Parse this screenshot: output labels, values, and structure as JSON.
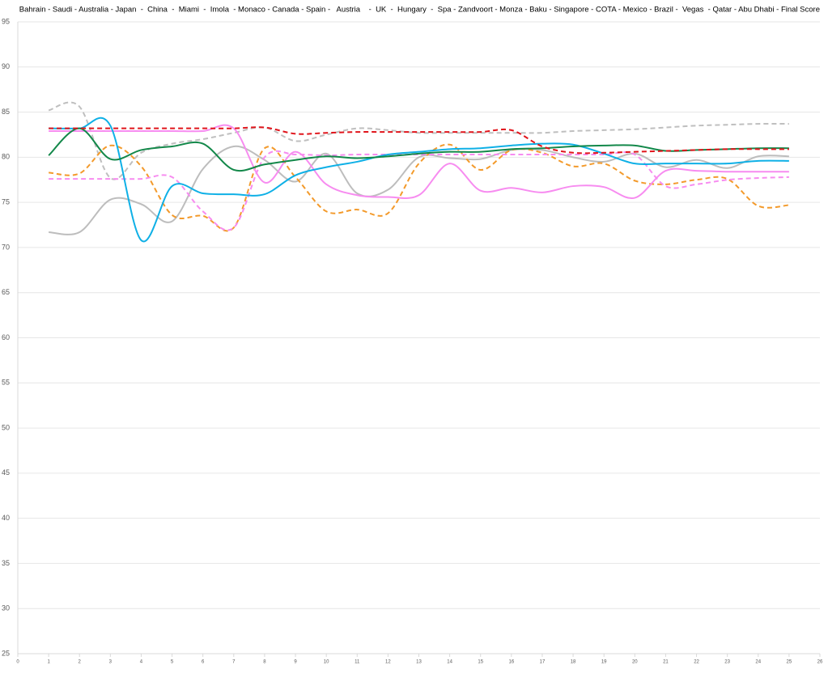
{
  "chart_data": {
    "type": "line",
    "title": "Bahrain - Saudi - Australia - Japan  -  China  -  Miami  -  Imola  - Monaco - Canada - Spain -   Austria    -  UK  -  Hungary  -  Spa - Zandvoort - Monza - Baku - Singapore - COTA - Mexico - Brazil -  Vegas  - Qatar - Abu Dhabi - Final Score",
    "x": [
      1,
      2,
      3,
      4,
      5,
      6,
      7,
      8,
      9,
      10,
      11,
      12,
      13,
      14,
      15,
      16,
      17,
      18,
      19,
      20,
      21,
      22,
      23,
      24,
      25
    ],
    "xlim": [
      0,
      26
    ],
    "xticks": [
      0,
      1,
      2,
      3,
      4,
      5,
      6,
      7,
      8,
      9,
      10,
      11,
      12,
      13,
      14,
      15,
      16,
      17,
      18,
      19,
      20,
      21,
      22,
      23,
      24,
      25,
      26
    ],
    "ylim": [
      25,
      95
    ],
    "yticks": [
      25,
      30,
      35,
      40,
      45,
      50,
      55,
      60,
      65,
      70,
      75,
      80,
      85,
      90,
      95
    ],
    "grid": true,
    "smooth": true,
    "series": [
      {
        "color": "#bdbdbd",
        "dashed": false,
        "values": [
          71.7,
          71.7,
          75.3,
          74.8,
          72.9,
          78.7,
          81.2,
          79.7,
          77.3,
          80.4,
          76.0,
          76.4,
          80.0,
          79.9,
          79.8,
          80.8,
          80.8,
          80.0,
          79.5,
          80.4,
          78.9,
          79.7,
          78.8,
          80.1,
          80.1
        ]
      },
      {
        "color": "#bfbfbf",
        "dashed": true,
        "values": [
          85.2,
          85.6,
          77.7,
          80.5,
          81.5,
          82.0,
          82.7,
          83.3,
          81.8,
          82.5,
          83.2,
          83.0,
          82.7,
          82.7,
          82.7,
          82.7,
          82.7,
          82.9,
          83.0,
          83.1,
          83.3,
          83.5,
          83.6,
          83.7,
          83.7
        ]
      },
      {
        "color": "#f39a2b",
        "dashed": true,
        "values": [
          78.3,
          78.2,
          81.3,
          79.0,
          73.6,
          73.5,
          72.2,
          81.0,
          77.8,
          74.0,
          74.2,
          73.8,
          79.3,
          81.4,
          78.6,
          80.8,
          80.5,
          79.0,
          79.3,
          77.4,
          77.0,
          77.5,
          77.6,
          74.6,
          74.7
        ]
      },
      {
        "color": "#f78cf0",
        "dashed": true,
        "values": [
          77.6,
          77.6,
          77.6,
          77.6,
          77.8,
          74.0,
          72.2,
          80.0,
          80.3,
          80.2,
          80.3,
          80.3,
          80.3,
          80.3,
          80.3,
          80.3,
          80.3,
          80.3,
          80.3,
          80.3,
          76.8,
          77.0,
          77.5,
          77.7,
          77.8
        ]
      },
      {
        "color": "#f78cf0",
        "dashed": false,
        "values": [
          82.9,
          82.9,
          82.9,
          82.9,
          82.9,
          82.9,
          83.2,
          77.2,
          80.6,
          77.0,
          75.8,
          75.6,
          75.8,
          79.3,
          76.3,
          76.6,
          76.1,
          76.8,
          76.7,
          75.5,
          78.5,
          78.5,
          78.4,
          78.4,
          78.4
        ]
      },
      {
        "color": "#0fb0e6",
        "dashed": false,
        "values": [
          83.2,
          83.2,
          83.5,
          70.8,
          76.8,
          76.0,
          75.9,
          75.9,
          78.0,
          78.9,
          79.5,
          80.3,
          80.6,
          80.9,
          81.0,
          81.3,
          81.5,
          81.4,
          80.4,
          79.3,
          79.3,
          79.3,
          79.3,
          79.6,
          79.6
        ]
      },
      {
        "color": "#13884a",
        "dashed": false,
        "values": [
          80.2,
          83.2,
          79.8,
          80.8,
          81.2,
          81.5,
          78.6,
          79.2,
          79.7,
          80.1,
          79.9,
          80.1,
          80.4,
          80.6,
          80.6,
          80.9,
          81.0,
          81.2,
          81.3,
          81.3,
          80.7,
          80.8,
          80.9,
          81.0,
          81.0
        ]
      },
      {
        "color": "#e0141b",
        "dashed": true,
        "values": [
          83.2,
          83.2,
          83.2,
          83.2,
          83.2,
          83.2,
          83.2,
          83.3,
          82.6,
          82.7,
          82.8,
          82.8,
          82.8,
          82.8,
          82.8,
          83.0,
          81.2,
          80.5,
          80.5,
          80.6,
          80.7,
          80.8,
          80.9,
          80.9,
          80.9
        ]
      }
    ]
  }
}
